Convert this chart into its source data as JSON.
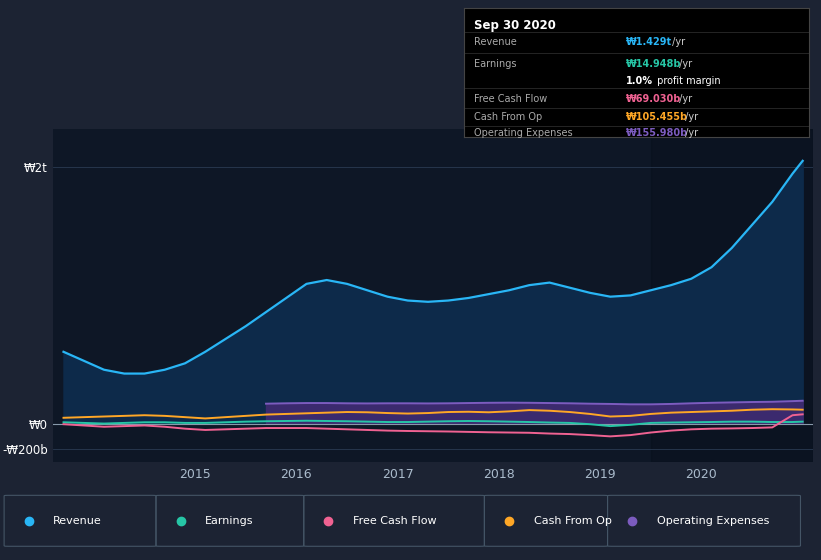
{
  "bg_color": "#1c2333",
  "plot_bg_color": "#0e1726",
  "ytick_labels": [
    "₩2t",
    "₩0",
    "-₩200b"
  ],
  "ytick_values": [
    2000,
    0,
    -200
  ],
  "xtick_labels": [
    "2015",
    "2016",
    "2017",
    "2018",
    "2019",
    "2020"
  ],
  "xtick_values": [
    2015,
    2016,
    2017,
    2018,
    2019,
    2020
  ],
  "ylim": [
    -300,
    2300
  ],
  "xlim_start": 2013.6,
  "xlim_end": 2021.1,
  "legend_items": [
    {
      "label": "Revenue",
      "color": "#29b6f6"
    },
    {
      "label": "Earnings",
      "color": "#26c6a6"
    },
    {
      "label": "Free Cash Flow",
      "color": "#f06292"
    },
    {
      "label": "Cash From Op",
      "color": "#ffa726"
    },
    {
      "label": "Operating Expenses",
      "color": "#7c5cbf"
    }
  ],
  "revenue_x": [
    2013.7,
    2013.9,
    2014.1,
    2014.3,
    2014.5,
    2014.7,
    2014.9,
    2015.1,
    2015.3,
    2015.5,
    2015.7,
    2015.9,
    2016.1,
    2016.3,
    2016.5,
    2016.7,
    2016.9,
    2017.1,
    2017.3,
    2017.5,
    2017.7,
    2017.9,
    2018.1,
    2018.3,
    2018.5,
    2018.7,
    2018.9,
    2019.1,
    2019.3,
    2019.5,
    2019.7,
    2019.9,
    2020.1,
    2020.3,
    2020.5,
    2020.7,
    2020.9,
    2021.0
  ],
  "revenue_y": [
    560,
    490,
    420,
    390,
    390,
    420,
    470,
    560,
    660,
    760,
    870,
    980,
    1090,
    1120,
    1090,
    1040,
    990,
    960,
    950,
    960,
    980,
    1010,
    1040,
    1080,
    1100,
    1060,
    1020,
    990,
    1000,
    1040,
    1080,
    1130,
    1220,
    1370,
    1550,
    1730,
    1950,
    2050
  ],
  "revenue_color": "#29b6f6",
  "revenue_fill": "#0d2a4a",
  "op_exp_x": [
    2015.7,
    2015.9,
    2016.1,
    2016.3,
    2016.5,
    2016.7,
    2016.9,
    2017.1,
    2017.3,
    2017.5,
    2017.7,
    2017.9,
    2018.1,
    2018.3,
    2018.5,
    2018.7,
    2018.9,
    2019.1,
    2019.3,
    2019.5,
    2019.7,
    2019.9,
    2020.1,
    2020.3,
    2020.5,
    2020.7,
    2020.9,
    2021.0
  ],
  "op_exp_y": [
    155,
    158,
    160,
    160,
    158,
    157,
    158,
    158,
    157,
    158,
    160,
    162,
    163,
    162,
    160,
    158,
    155,
    153,
    150,
    150,
    153,
    158,
    162,
    165,
    168,
    170,
    175,
    178
  ],
  "op_exp_color": "#7c5cbf",
  "op_exp_fill": "#3b2a6e",
  "cash_from_op_x": [
    2013.7,
    2013.9,
    2014.1,
    2014.3,
    2014.5,
    2014.7,
    2014.9,
    2015.1,
    2015.3,
    2015.5,
    2015.7,
    2015.9,
    2016.1,
    2016.3,
    2016.5,
    2016.7,
    2016.9,
    2017.1,
    2017.3,
    2017.5,
    2017.7,
    2017.9,
    2018.1,
    2018.3,
    2018.5,
    2018.7,
    2018.9,
    2019.1,
    2019.3,
    2019.5,
    2019.7,
    2019.9,
    2020.1,
    2020.3,
    2020.5,
    2020.7,
    2020.9,
    2021.0
  ],
  "cash_from_op_y": [
    45,
    50,
    55,
    60,
    65,
    60,
    50,
    40,
    50,
    60,
    70,
    75,
    80,
    85,
    90,
    88,
    82,
    78,
    82,
    90,
    92,
    88,
    95,
    105,
    100,
    90,
    75,
    55,
    60,
    75,
    85,
    90,
    95,
    100,
    108,
    112,
    110,
    108
  ],
  "cash_from_op_color": "#ffa726",
  "earnings_x": [
    2013.7,
    2013.9,
    2014.1,
    2014.3,
    2014.5,
    2014.7,
    2014.9,
    2015.1,
    2015.3,
    2015.5,
    2015.7,
    2015.9,
    2016.1,
    2016.3,
    2016.5,
    2016.7,
    2016.9,
    2017.1,
    2017.3,
    2017.5,
    2017.7,
    2017.9,
    2018.1,
    2018.3,
    2018.5,
    2018.7,
    2018.9,
    2019.1,
    2019.3,
    2019.5,
    2019.7,
    2019.9,
    2020.1,
    2020.3,
    2020.5,
    2020.7,
    2020.9,
    2021.0
  ],
  "earnings_y": [
    10,
    5,
    0,
    5,
    10,
    10,
    5,
    5,
    10,
    15,
    18,
    20,
    22,
    20,
    18,
    15,
    12,
    12,
    15,
    18,
    20,
    18,
    15,
    12,
    8,
    5,
    -5,
    -20,
    -10,
    5,
    8,
    10,
    12,
    15,
    15,
    12,
    12,
    15
  ],
  "earnings_color": "#26c6a6",
  "free_cash_flow_x": [
    2013.7,
    2013.9,
    2014.1,
    2014.3,
    2014.5,
    2014.7,
    2014.9,
    2015.1,
    2015.3,
    2015.5,
    2015.7,
    2015.9,
    2016.1,
    2016.3,
    2016.5,
    2016.7,
    2016.9,
    2017.1,
    2017.3,
    2017.5,
    2017.7,
    2017.9,
    2018.1,
    2018.3,
    2018.5,
    2018.7,
    2018.9,
    2019.1,
    2019.3,
    2019.5,
    2019.7,
    2019.9,
    2020.1,
    2020.3,
    2020.5,
    2020.7,
    2020.9,
    2021.0
  ],
  "free_cash_flow_y": [
    -5,
    -15,
    -25,
    -20,
    -15,
    -25,
    -40,
    -50,
    -45,
    -40,
    -35,
    -35,
    -35,
    -40,
    -45,
    -50,
    -55,
    -58,
    -60,
    -62,
    -65,
    -68,
    -70,
    -72,
    -78,
    -82,
    -90,
    -100,
    -90,
    -70,
    -55,
    -45,
    -40,
    -38,
    -35,
    -30,
    65,
    72
  ],
  "free_cash_flow_color": "#f06292",
  "infobox_bg": "#000000",
  "infobox_title": "Sep 30 2020",
  "infobox_rows": [
    {
      "label": "Revenue",
      "value": "₩1.429t /yr",
      "value_color": "#29b6f6"
    },
    {
      "label": "Earnings",
      "value": "₩14.948b /yr",
      "value_color": "#26c6a6"
    },
    {
      "label": "",
      "value": "1.0% profit margin",
      "value_color": "#ffffff"
    },
    {
      "label": "Free Cash Flow",
      "value": "₩69.030b /yr",
      "value_color": "#f06292"
    },
    {
      "label": "Cash From Op",
      "value": "₩105.455b /yr",
      "value_color": "#ffa726"
    },
    {
      "label": "Operating Expenses",
      "value": "₩155.980b /yr",
      "value_color": "#7c5cbf"
    }
  ]
}
